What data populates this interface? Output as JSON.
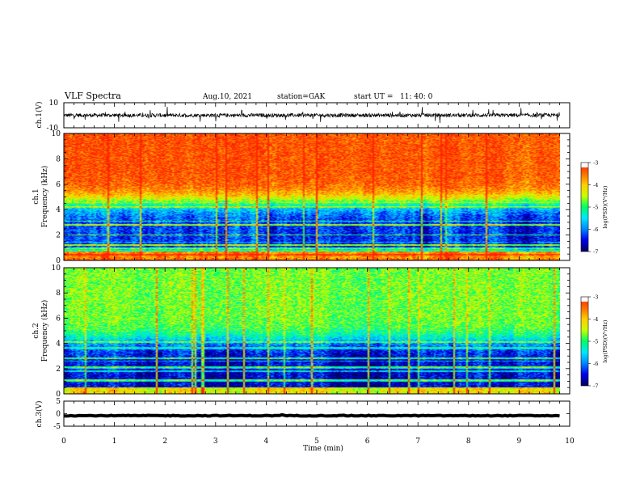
{
  "header": {
    "title": "VLF Spectra",
    "date": "Aug.10, 2021",
    "station": "station=GAK",
    "start": "start UT =   11: 40: 0"
  },
  "colormap": [
    "#000066",
    "#0000ee",
    "#0088ff",
    "#00e8ff",
    "#00ff66",
    "#c8ff00",
    "#ffd000",
    "#ff7000",
    "#ff2200",
    "#ffffff"
  ],
  "chart_data": [
    {
      "type": "line",
      "id": "ch1-waveform",
      "ylabel": "ch.1(V)",
      "ylim": [
        -10,
        10
      ],
      "yticks": [
        "10",
        "-10"
      ],
      "x_range_min": [
        0,
        9.8
      ],
      "baseline_v": 0,
      "noise_amplitude_v": 3
    },
    {
      "type": "heatmap",
      "id": "ch1-spectrogram",
      "ylabel": "ch.1\nFrequency (kHz)",
      "ylabel_lines": [
        "ch.1",
        "Frequency (kHz)"
      ],
      "ylim": [
        0,
        10
      ],
      "yticks": [
        "0",
        "2",
        "4",
        "6",
        "8",
        "10"
      ],
      "x_range_min": [
        0,
        9.8
      ],
      "colorbar": {
        "label": "log(PSD)(V²/Hz)",
        "range": [
          -7,
          -3
        ],
        "ticks": [
          "-3",
          "-4",
          "-5",
          "-6",
          "-7"
        ]
      },
      "profile": {
        "high_band_log_psd": -3.3,
        "transition_khz": 4.6,
        "low_band_log_psd": -6.3,
        "floor_band_khz": [
          0,
          0.7
        ],
        "floor_log_psd": -3.6
      }
    },
    {
      "type": "heatmap",
      "id": "ch2-spectrogram",
      "ylabel": "ch.2\nFrequency (kHz)",
      "ylabel_lines": [
        "ch.2",
        "Frequency (kHz)"
      ],
      "ylim": [
        0,
        10
      ],
      "yticks": [
        "0",
        "2",
        "4",
        "6",
        "8",
        "10"
      ],
      "x_range_min": [
        0,
        9.8
      ],
      "colorbar": {
        "label": "log(PSD)(V²/Hz)",
        "range": [
          -7,
          -3
        ],
        "ticks": [
          "-3",
          "-4",
          "-5",
          "-6",
          "-7"
        ]
      },
      "profile": {
        "high_band_log_psd": -4.7,
        "transition_khz": 4.2,
        "low_band_log_psd": -6.6,
        "floor_band_khz": [
          0,
          0.5
        ],
        "floor_log_psd": -4.2
      }
    },
    {
      "type": "line",
      "id": "ch3-waveform",
      "ylabel": "ch.3(V)",
      "ylim": [
        -5,
        5
      ],
      "yticks": [
        "5",
        "0",
        "-5"
      ],
      "x_range_min": [
        0,
        9.8
      ],
      "baseline_v": -0.8,
      "noise_amplitude_v": 0.3
    }
  ],
  "x_axis": {
    "label": "Time (min)",
    "range": [
      0,
      10
    ],
    "ticks": [
      "0",
      "1",
      "2",
      "3",
      "4",
      "5",
      "6",
      "7",
      "8",
      "9",
      "10"
    ]
  }
}
